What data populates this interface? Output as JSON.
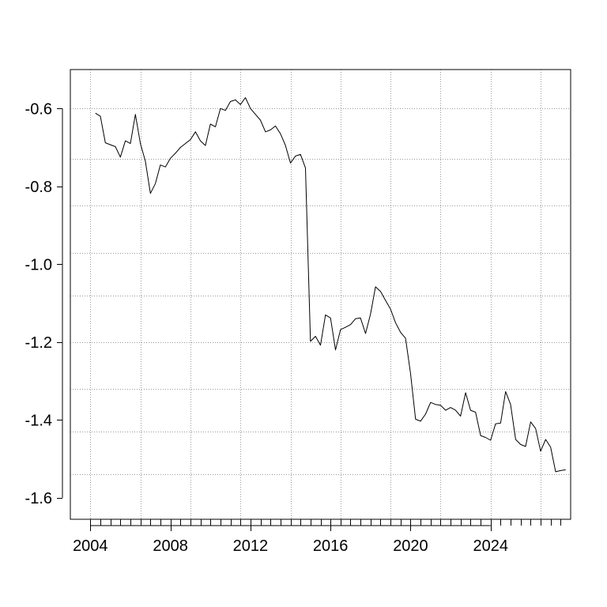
{
  "chart_data": {
    "type": "line",
    "title": "",
    "xlabel": "",
    "ylabel": "",
    "xlim": [
      2003.0,
      2028.0
    ],
    "ylim": [
      -1.655,
      -0.5
    ],
    "grid": true,
    "legend": "none",
    "line_color": "#000000",
    "grid_color": "#9a9a9a",
    "x_ticks": [
      {
        "value": 2004,
        "label": "2004"
      },
      {
        "value": 2008,
        "label": "2008"
      },
      {
        "value": 2012,
        "label": "2012"
      },
      {
        "value": 2016,
        "label": "2016"
      },
      {
        "value": 2020,
        "label": "2020"
      },
      {
        "value": 2024,
        "label": "2024"
      }
    ],
    "y_ticks": [
      {
        "value": -0.6,
        "label": "-0.6"
      },
      {
        "value": -0.8,
        "label": "-0.8"
      },
      {
        "value": -1.0,
        "label": "-1.0"
      },
      {
        "value": -1.2,
        "label": "-1.2"
      },
      {
        "value": -1.4,
        "label": "-1.4"
      },
      {
        "value": -1.6,
        "label": "-1.6"
      }
    ],
    "x_grid": [
      2004.0,
      2006.5,
      2009.0,
      2011.5,
      2014.0,
      2016.5,
      2019.0,
      2021.5,
      2024.0,
      2026.5
    ],
    "y_grid": [
      -0.6,
      -0.73,
      -0.85,
      -0.97,
      -1.08,
      -1.2,
      -1.32,
      -1.43,
      -1.54
    ],
    "series": [
      {
        "x": [
          2004.25,
          2004.5,
          2004.75,
          2005.0,
          2005.25,
          2005.5,
          2005.75,
          2006.0,
          2006.25,
          2006.5,
          2006.75,
          2007.0,
          2007.25,
          2007.5,
          2007.75,
          2008.0,
          2008.25,
          2008.5,
          2008.75,
          2009.0,
          2009.25,
          2009.5,
          2009.75,
          2010.0,
          2010.25,
          2010.5,
          2010.75,
          2011.0,
          2011.25,
          2011.5,
          2011.75,
          2012.0,
          2012.25,
          2012.5,
          2012.75,
          2013.0,
          2013.25,
          2013.5,
          2013.75,
          2014.0,
          2014.25,
          2014.5,
          2014.75,
          2015.0,
          2015.25,
          2015.5,
          2015.75,
          2016.0,
          2016.25,
          2016.5,
          2016.75,
          2017.0,
          2017.25,
          2017.5,
          2017.75,
          2018.0,
          2018.25,
          2018.5,
          2018.75,
          2019.0,
          2019.25,
          2019.5,
          2019.75,
          2020.0,
          2020.25,
          2020.5,
          2020.75,
          2021.0,
          2021.25,
          2021.5,
          2021.75,
          2022.0,
          2022.25,
          2022.5,
          2022.75,
          2023.0,
          2023.25,
          2023.5,
          2023.75,
          2024.0,
          2024.25,
          2024.5,
          2024.75,
          2025.0,
          2025.25,
          2025.5,
          2025.75,
          2026.0,
          2026.25,
          2026.5,
          2026.75,
          2027.0,
          2027.25,
          2027.5,
          2027.75
        ],
        "values": [
          -0.612,
          -0.62,
          -0.688,
          -0.693,
          -0.698,
          -0.725,
          -0.683,
          -0.69,
          -0.615,
          -0.69,
          -0.735,
          -0.818,
          -0.793,
          -0.745,
          -0.75,
          -0.728,
          -0.715,
          -0.7,
          -0.69,
          -0.68,
          -0.66,
          -0.683,
          -0.695,
          -0.64,
          -0.647,
          -0.6,
          -0.605,
          -0.582,
          -0.578,
          -0.59,
          -0.572,
          -0.6,
          -0.615,
          -0.63,
          -0.66,
          -0.655,
          -0.645,
          -0.665,
          -0.695,
          -0.74,
          -0.722,
          -0.718,
          -0.753,
          -1.198,
          -1.185,
          -1.208,
          -1.13,
          -1.138,
          -1.22,
          -1.168,
          -1.162,
          -1.155,
          -1.14,
          -1.138,
          -1.178,
          -1.128,
          -1.058,
          -1.07,
          -1.093,
          -1.115,
          -1.15,
          -1.175,
          -1.19,
          -1.28,
          -1.398,
          -1.403,
          -1.385,
          -1.355,
          -1.36,
          -1.362,
          -1.375,
          -1.368,
          -1.375,
          -1.39,
          -1.33,
          -1.375,
          -1.38,
          -1.44,
          -1.445,
          -1.452,
          -1.41,
          -1.408,
          -1.327,
          -1.36,
          -1.45,
          -1.463,
          -1.468,
          -1.405,
          -1.422,
          -1.48,
          -1.45,
          -1.47,
          -1.533,
          -1.53,
          -1.528
        ]
      }
    ]
  }
}
